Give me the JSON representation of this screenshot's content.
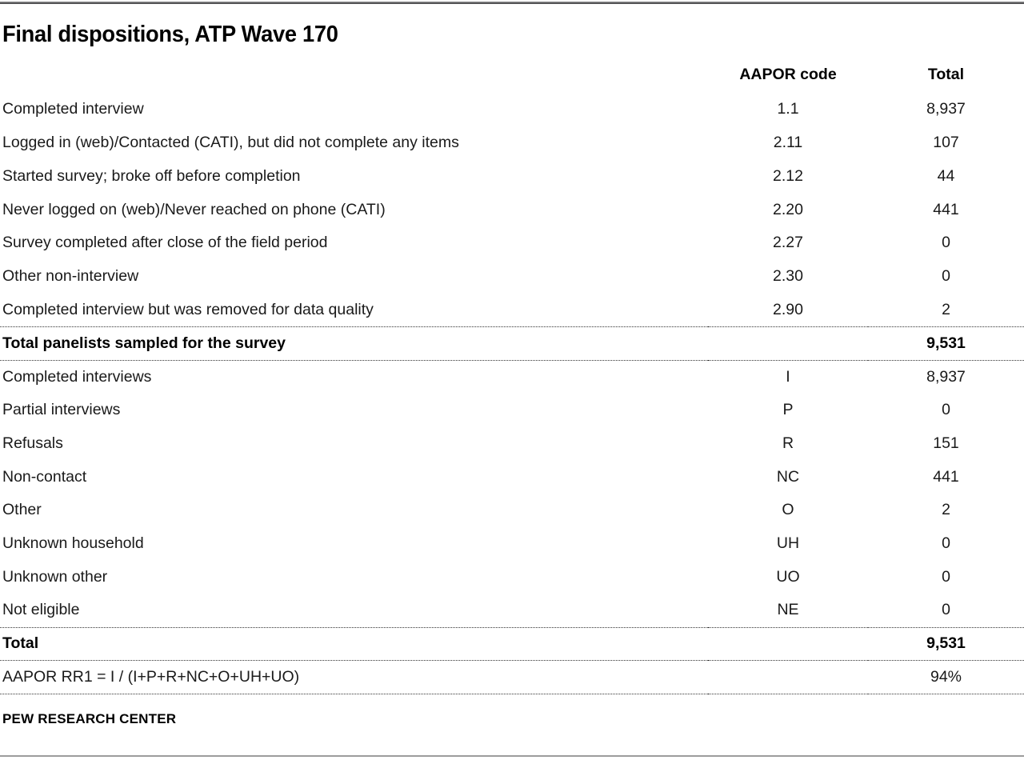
{
  "page": {
    "title": "Final dispositions, ATP Wave 170",
    "footer": "PEW RESEARCH CENTER"
  },
  "colors": {
    "top_rule": "#4a4a4c",
    "bottom_rule": "#9d9d9d",
    "dotted_divider": "#333333",
    "text": "#1a1a1a"
  },
  "table": {
    "columns": {
      "label": "",
      "code": "AAPOR code",
      "total": "Total"
    },
    "rows": [
      {
        "label": "Completed interview",
        "code": "1.1",
        "total": "8,937",
        "style": "data"
      },
      {
        "label": "Logged in (web)/Contacted (CATI), but did not complete any items",
        "code": "2.11",
        "total": "107",
        "style": "data"
      },
      {
        "label": "Started survey; broke off before completion",
        "code": "2.12",
        "total": "44",
        "style": "data"
      },
      {
        "label": "Never logged on (web)/Never reached on phone (CATI)",
        "code": "2.20",
        "total": "441",
        "style": "data"
      },
      {
        "label": "Survey completed after close of the field period",
        "code": "2.27",
        "total": "0",
        "style": "data"
      },
      {
        "label": "Other non-interview",
        "code": "2.30",
        "total": "0",
        "style": "data"
      },
      {
        "label": "Completed interview but was removed for data quality",
        "code": "2.90",
        "total": "2",
        "style": "data"
      },
      {
        "label": "Total panelists sampled for the survey",
        "code": "",
        "total": "9,531",
        "style": "summary"
      },
      {
        "label": "Completed interviews",
        "code": "I",
        "total": "8,937",
        "style": "data"
      },
      {
        "label": "Partial interviews",
        "code": "P",
        "total": "0",
        "style": "data"
      },
      {
        "label": "Refusals",
        "code": "R",
        "total": "151",
        "style": "data"
      },
      {
        "label": "Non-contact",
        "code": "NC",
        "total": "441",
        "style": "data"
      },
      {
        "label": "Other",
        "code": "O",
        "total": "2",
        "style": "data"
      },
      {
        "label": "Unknown household",
        "code": "UH",
        "total": "0",
        "style": "data"
      },
      {
        "label": "Unknown other",
        "code": "UO",
        "total": "0",
        "style": "data"
      },
      {
        "label": "Not eligible",
        "code": "NE",
        "total": "0",
        "style": "data"
      },
      {
        "label": "Total",
        "code": "",
        "total": "9,531",
        "style": "summary"
      },
      {
        "label": "AAPOR RR1 = I / (I+P+R+NC+O+UH+UO)",
        "code": "",
        "total": "94%",
        "style": "formula"
      }
    ]
  }
}
